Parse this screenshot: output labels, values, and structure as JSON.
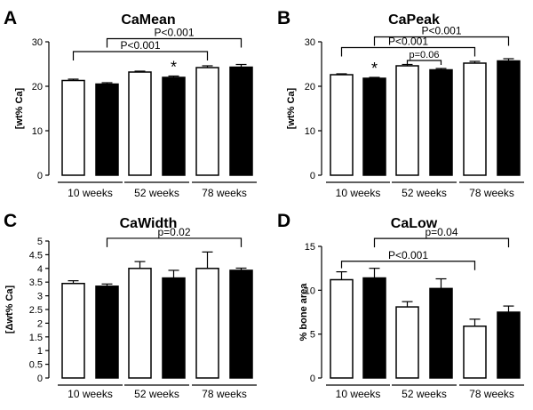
{
  "chart_data": [
    {
      "panel": "A",
      "type": "bar",
      "title": "CaMean",
      "ylabel": "[wt% Ca]",
      "ylim": [
        0,
        30
      ],
      "yticks": [
        0,
        10,
        20,
        30
      ],
      "groups": [
        "10 weeks",
        "52 weeks",
        "78 weeks"
      ],
      "series": [
        {
          "name": "open",
          "color": "#ffffff"
        },
        {
          "name": "filled",
          "color": "#000000"
        }
      ],
      "bars": [
        {
          "group": 0,
          "series": 0,
          "value": 21.3,
          "err": 0.3
        },
        {
          "group": 0,
          "series": 1,
          "value": 20.5,
          "err": 0.3
        },
        {
          "group": 1,
          "series": 0,
          "value": 23.2,
          "err": 0.2
        },
        {
          "group": 1,
          "series": 1,
          "value": 22.0,
          "err": 0.3
        },
        {
          "group": 2,
          "series": 0,
          "value": 24.2,
          "err": 0.4
        },
        {
          "group": 2,
          "series": 1,
          "value": 24.3,
          "err": 0.6
        }
      ],
      "brackets": [
        {
          "from": 0,
          "to": 4,
          "level": 27.8,
          "label": "P<0.001",
          "fs": 12
        },
        {
          "from": 1,
          "to": 5,
          "level": 30.7,
          "label": "P<0.001",
          "fs": 12
        }
      ],
      "stars": [
        {
          "bar": 3,
          "label": "*"
        }
      ]
    },
    {
      "panel": "B",
      "type": "bar",
      "title": "CaPeak",
      "ylabel": "[wt% Ca]",
      "ylim": [
        0,
        30
      ],
      "yticks": [
        0,
        10,
        20,
        30
      ],
      "groups": [
        "10 weeks",
        "52 weeks",
        "78 weeks"
      ],
      "series": [
        {
          "name": "open",
          "color": "#ffffff"
        },
        {
          "name": "filled",
          "color": "#000000"
        }
      ],
      "bars": [
        {
          "group": 0,
          "series": 0,
          "value": 22.6,
          "err": 0.2
        },
        {
          "group": 0,
          "series": 1,
          "value": 21.8,
          "err": 0.2
        },
        {
          "group": 1,
          "series": 0,
          "value": 24.6,
          "err": 0.3
        },
        {
          "group": 1,
          "series": 1,
          "value": 23.7,
          "err": 0.3
        },
        {
          "group": 2,
          "series": 0,
          "value": 25.2,
          "err": 0.4
        },
        {
          "group": 2,
          "series": 1,
          "value": 25.7,
          "err": 0.5
        }
      ],
      "brackets": [
        {
          "from": 0,
          "to": 4,
          "level": 28.7,
          "label": "P<0.001",
          "fs": 12
        },
        {
          "from": 1,
          "to": 5,
          "level": 31.1,
          "label": "P<0.001",
          "fs": 12
        },
        {
          "from": 2,
          "to": 3,
          "level": 25.8,
          "label": "p=0.06",
          "fs": 11
        }
      ],
      "stars": [
        {
          "bar": 1,
          "label": "*"
        }
      ]
    },
    {
      "panel": "C",
      "type": "bar",
      "title": "CaWidth",
      "ylabel": "[Δwt% Ca]",
      "ylim": [
        0,
        5
      ],
      "yticks": [
        0,
        0.5,
        1,
        1.5,
        2,
        2.5,
        3,
        3.5,
        4,
        4.5,
        5
      ],
      "groups": [
        "10 weeks",
        "52 weeks",
        "78 weeks"
      ],
      "series": [
        {
          "name": "open",
          "color": "#ffffff"
        },
        {
          "name": "filled",
          "color": "#000000"
        }
      ],
      "bars": [
        {
          "group": 0,
          "series": 0,
          "value": 3.45,
          "err": 0.1
        },
        {
          "group": 0,
          "series": 1,
          "value": 3.35,
          "err": 0.08
        },
        {
          "group": 1,
          "series": 0,
          "value": 4.0,
          "err": 0.25
        },
        {
          "group": 1,
          "series": 1,
          "value": 3.65,
          "err": 0.28
        },
        {
          "group": 2,
          "series": 0,
          "value": 4.0,
          "err": 0.6
        },
        {
          "group": 2,
          "series": 1,
          "value": 3.93,
          "err": 0.08
        }
      ],
      "brackets": [
        {
          "from": 1,
          "to": 5,
          "level": 5.1,
          "label": "p=0.02",
          "fs": 12
        }
      ],
      "stars": []
    },
    {
      "panel": "D",
      "type": "bar",
      "title": "CaLow",
      "ylabel": "% bone area",
      "ylim": [
        0,
        15
      ],
      "yticks": [
        0,
        5,
        10,
        15
      ],
      "groups": [
        "10 weeks",
        "52 weeks",
        "78 weeks"
      ],
      "series": [
        {
          "name": "open",
          "color": "#ffffff"
        },
        {
          "name": "filled",
          "color": "#000000"
        }
      ],
      "bars": [
        {
          "group": 0,
          "series": 0,
          "value": 11.2,
          "err": 0.9
        },
        {
          "group": 0,
          "series": 1,
          "value": 11.4,
          "err": 1.1
        },
        {
          "group": 1,
          "series": 0,
          "value": 8.1,
          "err": 0.6
        },
        {
          "group": 1,
          "series": 1,
          "value": 10.2,
          "err": 1.1
        },
        {
          "group": 2,
          "series": 0,
          "value": 5.9,
          "err": 0.8
        },
        {
          "group": 2,
          "series": 1,
          "value": 7.5,
          "err": 0.7
        }
      ],
      "brackets": [
        {
          "from": 0,
          "to": 4,
          "level": 13.3,
          "label": "P<0.001",
          "fs": 12
        },
        {
          "from": 1,
          "to": 5,
          "level": 15.9,
          "label": "p=0.04",
          "fs": 12
        }
      ],
      "stars": []
    }
  ]
}
